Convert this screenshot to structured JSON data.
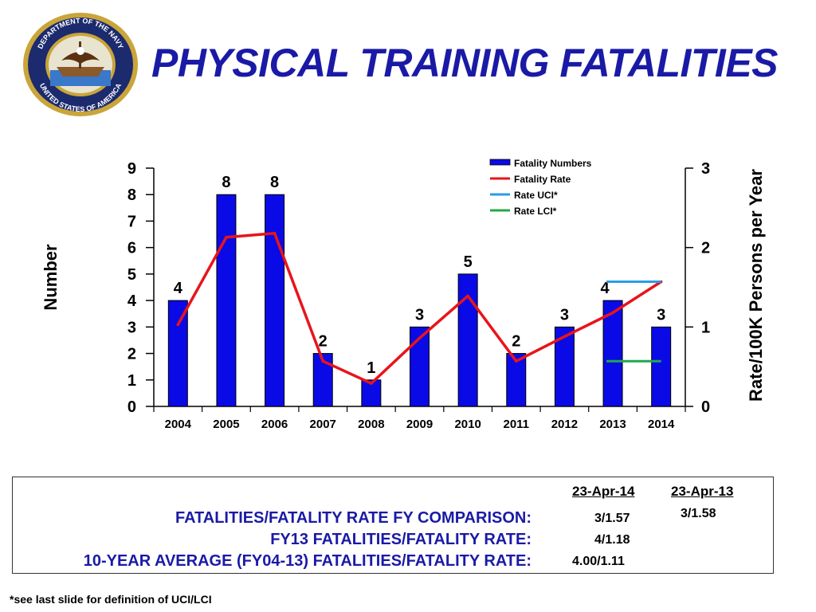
{
  "title": "PHYSICAL TRAINING FATALITIES",
  "seal": {
    "text_top": "DEPARTMENT OF THE NAVY",
    "text_bottom": "UNITED STATES OF AMERICA"
  },
  "colors": {
    "title": "#1a1aa6",
    "bars": "#0a0ae6",
    "rate_line": "#e8141a",
    "uci": "#2a9be6",
    "lci": "#22a84a"
  },
  "chart_data": {
    "type": "bar",
    "categories": [
      "2004",
      "2005",
      "2006",
      "2007",
      "2008",
      "2009",
      "2010",
      "2011",
      "2012",
      "2013",
      "2014"
    ],
    "series": [
      {
        "name": "Fatality Numbers",
        "type": "bar",
        "axis": "left",
        "values": [
          4,
          8,
          8,
          2,
          1,
          3,
          5,
          2,
          3,
          4,
          3
        ]
      },
      {
        "name": "Fatality Rate",
        "type": "line",
        "axis": "right",
        "values": [
          1.03,
          2.13,
          2.18,
          0.57,
          0.29,
          0.86,
          1.39,
          0.57,
          0.88,
          1.18,
          1.57
        ]
      },
      {
        "name": "Rate UCI*",
        "type": "line",
        "axis": "right",
        "x": [
          "2013",
          "2014"
        ],
        "values": [
          1.57,
          1.57
        ]
      },
      {
        "name": "Rate LCI*",
        "type": "line",
        "axis": "right",
        "x": [
          "2013",
          "2014"
        ],
        "values": [
          0.57,
          0.57
        ]
      }
    ],
    "bar_labels": [
      "4",
      "8",
      "8",
      "2",
      "1",
      "3",
      "5",
      "2",
      "3",
      "4",
      "3"
    ],
    "ylabel": "Number",
    "y2label": "Rate/100K Persons per Year",
    "ylim": [
      0,
      9
    ],
    "y2lim": [
      0,
      3
    ],
    "yticks": [
      "0",
      "1",
      "2",
      "3",
      "4",
      "5",
      "6",
      "7",
      "8",
      "9"
    ],
    "y2ticks": [
      "0",
      "1",
      "2",
      "3"
    ],
    "legend": [
      "Fatality Numbers",
      "Fatality Rate",
      "Rate UCI*",
      "Rate LCI*"
    ],
    "legend_position": "top-right",
    "grid": false
  },
  "comparison": {
    "col1_header": "23-Apr-14",
    "col2_header": "23-Apr-13",
    "rows": [
      {
        "label": "FATALITIES/FATALITY RATE FY COMPARISON:",
        "col1": "3/1.57",
        "col2": "3/1.58"
      },
      {
        "label": "FY13 FATALITIES/FATALITY RATE:",
        "col1": "4/1.18",
        "col2": ""
      },
      {
        "label": "10-YEAR AVERAGE (FY04-13) FATALITIES/FATALITY RATE:",
        "col1": "4.00/1.11",
        "col2": ""
      }
    ]
  },
  "footnote": "*see last slide for definition of UCI/LCI"
}
